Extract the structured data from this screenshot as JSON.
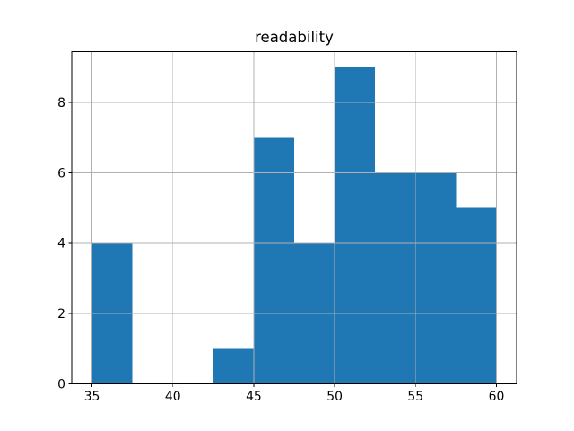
{
  "figure": {
    "background": "#ffffff"
  },
  "chart_data": {
    "type": "bar",
    "subtype": "histogram",
    "title": "readability",
    "xlabel": "",
    "ylabel": "",
    "bin_edges": [
      35,
      37.5,
      40,
      42.5,
      45,
      47.5,
      50,
      52.5,
      55,
      57.5,
      60
    ],
    "values": [
      4,
      0,
      0,
      1,
      7,
      4,
      9,
      6,
      6,
      5
    ],
    "xlim": [
      33.75,
      61.25
    ],
    "ylim": [
      0,
      9.45
    ],
    "xticks": [
      35,
      40,
      45,
      50,
      55,
      60
    ],
    "yticks": [
      0,
      2,
      4,
      6,
      8
    ],
    "grid": true,
    "legend_position": "none",
    "bar_color": "#1f77b4",
    "grid_color": "#b0b0b0",
    "spine_color": "#000000",
    "tick_color": "#000000",
    "title_color": "#000000"
  }
}
